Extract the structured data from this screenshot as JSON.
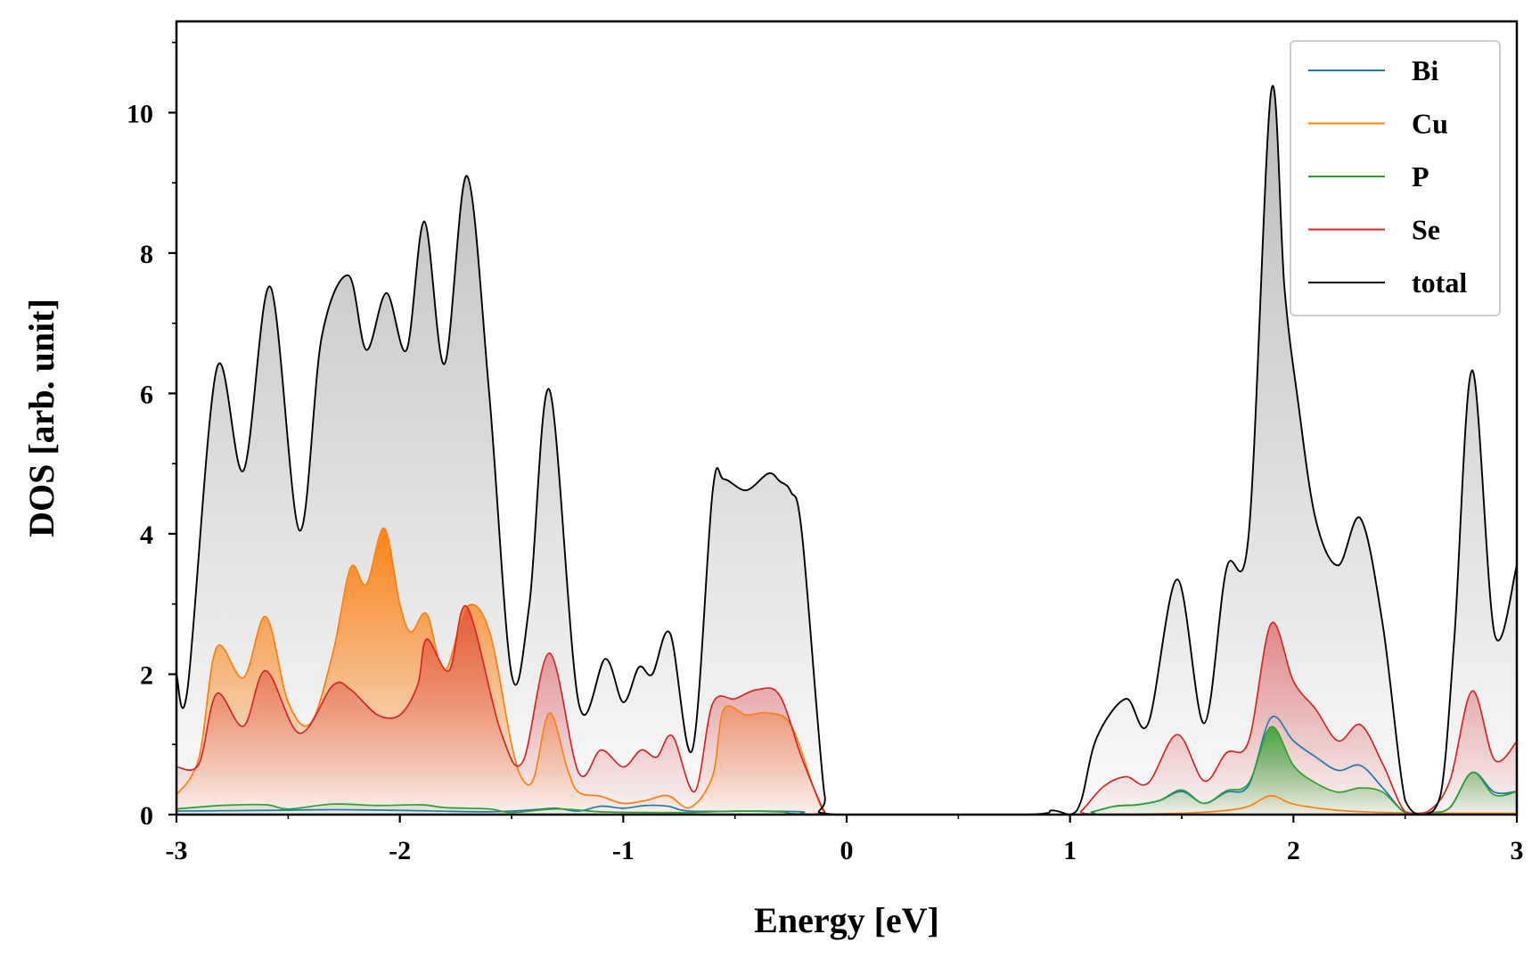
{
  "chart_data": {
    "type": "area",
    "xlabel": "Energy [eV]",
    "ylabel": "DOS [arb. unit]",
    "xlim": [
      -3,
      3
    ],
    "ylim": [
      0,
      11.3
    ],
    "xticks": [
      -3,
      -2,
      -1,
      0,
      1,
      2,
      3
    ],
    "xtick_labels": [
      "-3",
      "-2",
      "-1",
      "0",
      "1",
      "2",
      "3"
    ],
    "yticks": [
      0,
      2,
      4,
      6,
      8,
      10
    ],
    "ytick_labels": [
      "0",
      "2",
      "4",
      "6",
      "8",
      "10"
    ],
    "legend_position": "top-right",
    "grid": false,
    "series": [
      {
        "name": "Bi",
        "color": "#1f77b4",
        "filled": false,
        "points": [
          [
            -3,
            0.05
          ],
          [
            -2.6,
            0.06
          ],
          [
            -2.3,
            0.07
          ],
          [
            -2,
            0.06
          ],
          [
            -1.6,
            0.04
          ],
          [
            -1.4,
            0.07
          ],
          [
            -1.3,
            0.09
          ],
          [
            -1.2,
            0.05
          ],
          [
            -1.1,
            0.12
          ],
          [
            -1,
            0.09
          ],
          [
            -0.9,
            0.13
          ],
          [
            -0.8,
            0.12
          ],
          [
            -0.7,
            0.05
          ],
          [
            -0.4,
            0.05
          ],
          [
            -0.2,
            0.04
          ],
          [
            -0.1,
            0
          ],
          [
            1.0,
            0
          ],
          [
            1.1,
            0.04
          ],
          [
            1.2,
            0.12
          ],
          [
            1.3,
            0.14
          ],
          [
            1.4,
            0.2
          ],
          [
            1.5,
            0.33
          ],
          [
            1.6,
            0.16
          ],
          [
            1.7,
            0.32
          ],
          [
            1.8,
            0.42
          ],
          [
            1.9,
            1.38
          ],
          [
            2.0,
            1.05
          ],
          [
            2.1,
            0.82
          ],
          [
            2.2,
            0.63
          ],
          [
            2.3,
            0.7
          ],
          [
            2.4,
            0.38
          ],
          [
            2.5,
            0.03
          ],
          [
            2.6,
            0.03
          ],
          [
            2.7,
            0.1
          ],
          [
            2.8,
            0.6
          ],
          [
            2.9,
            0.32
          ],
          [
            3.0,
            0.33
          ]
        ]
      },
      {
        "name": "Cu",
        "color": "#ff7f0e",
        "filled": true,
        "points": [
          [
            -3,
            0.28
          ],
          [
            -2.9,
            0.8
          ],
          [
            -2.82,
            2.38
          ],
          [
            -2.7,
            1.95
          ],
          [
            -2.6,
            2.82
          ],
          [
            -2.5,
            1.6
          ],
          [
            -2.4,
            1.3
          ],
          [
            -2.3,
            2.3
          ],
          [
            -2.22,
            3.52
          ],
          [
            -2.15,
            3.28
          ],
          [
            -2.07,
            4.08
          ],
          [
            -2.0,
            3.0
          ],
          [
            -1.95,
            2.6
          ],
          [
            -1.88,
            2.86
          ],
          [
            -1.8,
            2.05
          ],
          [
            -1.7,
            2.96
          ],
          [
            -1.6,
            2.62
          ],
          [
            -1.5,
            1.0
          ],
          [
            -1.45,
            0.5
          ],
          [
            -1.4,
            0.52
          ],
          [
            -1.33,
            1.45
          ],
          [
            -1.25,
            0.65
          ],
          [
            -1.2,
            0.32
          ],
          [
            -1.1,
            0.26
          ],
          [
            -1.0,
            0.16
          ],
          [
            -0.9,
            0.2
          ],
          [
            -0.8,
            0.27
          ],
          [
            -0.7,
            0.1
          ],
          [
            -0.6,
            0.55
          ],
          [
            -0.55,
            1.5
          ],
          [
            -0.45,
            1.42
          ],
          [
            -0.35,
            1.45
          ],
          [
            -0.25,
            1.28
          ],
          [
            -0.15,
            0.4
          ],
          [
            -0.1,
            0.03
          ],
          [
            -0.05,
            0
          ],
          [
            1.0,
            0
          ],
          [
            1.5,
            0.02
          ],
          [
            1.7,
            0.06
          ],
          [
            1.8,
            0.12
          ],
          [
            1.9,
            0.27
          ],
          [
            2.0,
            0.15
          ],
          [
            2.2,
            0.06
          ],
          [
            2.4,
            0.03
          ],
          [
            2.6,
            0.02
          ],
          [
            3.0,
            0.02
          ]
        ]
      },
      {
        "name": "P",
        "color": "#2ca02c",
        "filled": true,
        "points": [
          [
            -3,
            0.08
          ],
          [
            -2.8,
            0.13
          ],
          [
            -2.6,
            0.14
          ],
          [
            -2.5,
            0.08
          ],
          [
            -2.3,
            0.15
          ],
          [
            -2.1,
            0.13
          ],
          [
            -1.9,
            0.14
          ],
          [
            -1.8,
            0.1
          ],
          [
            -1.6,
            0.08
          ],
          [
            -1.5,
            0.03
          ],
          [
            -1.3,
            0.08
          ],
          [
            -1.1,
            0.04
          ],
          [
            -0.9,
            0.03
          ],
          [
            -0.7,
            0.03
          ],
          [
            -0.5,
            0.05
          ],
          [
            -0.3,
            0.04
          ],
          [
            -0.1,
            0
          ],
          [
            1.0,
            0
          ],
          [
            1.1,
            0.04
          ],
          [
            1.2,
            0.12
          ],
          [
            1.3,
            0.14
          ],
          [
            1.4,
            0.2
          ],
          [
            1.5,
            0.35
          ],
          [
            1.6,
            0.16
          ],
          [
            1.7,
            0.34
          ],
          [
            1.8,
            0.45
          ],
          [
            1.9,
            1.25
          ],
          [
            2.0,
            0.7
          ],
          [
            2.1,
            0.45
          ],
          [
            2.2,
            0.32
          ],
          [
            2.3,
            0.38
          ],
          [
            2.4,
            0.32
          ],
          [
            2.5,
            0.03
          ],
          [
            2.6,
            0.03
          ],
          [
            2.7,
            0.1
          ],
          [
            2.8,
            0.6
          ],
          [
            2.9,
            0.28
          ],
          [
            3.0,
            0.33
          ]
        ]
      },
      {
        "name": "Se",
        "color": "#d62728",
        "filled": true,
        "points": [
          [
            -3,
            0.68
          ],
          [
            -2.9,
            0.72
          ],
          [
            -2.82,
            1.72
          ],
          [
            -2.7,
            1.26
          ],
          [
            -2.6,
            2.05
          ],
          [
            -2.45,
            1.16
          ],
          [
            -2.3,
            1.84
          ],
          [
            -2.22,
            1.78
          ],
          [
            -2.1,
            1.42
          ],
          [
            -2.0,
            1.42
          ],
          [
            -1.92,
            1.85
          ],
          [
            -1.88,
            2.5
          ],
          [
            -1.78,
            2.05
          ],
          [
            -1.7,
            2.96
          ],
          [
            -1.55,
            1.2
          ],
          [
            -1.45,
            0.75
          ],
          [
            -1.33,
            2.3
          ],
          [
            -1.2,
            0.6
          ],
          [
            -1.1,
            0.92
          ],
          [
            -1.0,
            0.68
          ],
          [
            -0.92,
            0.92
          ],
          [
            -0.85,
            0.82
          ],
          [
            -0.78,
            1.12
          ],
          [
            -0.68,
            0.33
          ],
          [
            -0.6,
            1.58
          ],
          [
            -0.5,
            1.65
          ],
          [
            -0.4,
            1.78
          ],
          [
            -0.3,
            1.7
          ],
          [
            -0.2,
            0.8
          ],
          [
            -0.1,
            0.05
          ],
          [
            -0.05,
            0
          ],
          [
            1.0,
            0
          ],
          [
            1.05,
            0.05
          ],
          [
            1.15,
            0.4
          ],
          [
            1.25,
            0.54
          ],
          [
            1.35,
            0.45
          ],
          [
            1.48,
            1.14
          ],
          [
            1.6,
            0.48
          ],
          [
            1.7,
            0.88
          ],
          [
            1.8,
            1.05
          ],
          [
            1.9,
            2.72
          ],
          [
            2.0,
            1.9
          ],
          [
            2.1,
            1.5
          ],
          [
            2.2,
            1.05
          ],
          [
            2.3,
            1.28
          ],
          [
            2.4,
            0.72
          ],
          [
            2.5,
            0.04
          ],
          [
            2.6,
            0.04
          ],
          [
            2.7,
            0.48
          ],
          [
            2.8,
            1.76
          ],
          [
            2.9,
            0.78
          ],
          [
            3.0,
            1.04
          ]
        ]
      },
      {
        "name": "total",
        "color": "#000000",
        "filled": true,
        "points": [
          [
            -3,
            2.0
          ],
          [
            -2.95,
            1.8
          ],
          [
            -2.82,
            6.35
          ],
          [
            -2.7,
            4.9
          ],
          [
            -2.58,
            7.52
          ],
          [
            -2.45,
            4.05
          ],
          [
            -2.35,
            6.8
          ],
          [
            -2.23,
            7.68
          ],
          [
            -2.15,
            6.62
          ],
          [
            -2.06,
            7.43
          ],
          [
            -1.97,
            6.62
          ],
          [
            -1.89,
            8.45
          ],
          [
            -1.8,
            6.42
          ],
          [
            -1.7,
            9.1
          ],
          [
            -1.6,
            6.0
          ],
          [
            -1.5,
            2.0
          ],
          [
            -1.42,
            3.0
          ],
          [
            -1.33,
            6.05
          ],
          [
            -1.2,
            1.6
          ],
          [
            -1.08,
            2.22
          ],
          [
            -1.0,
            1.6
          ],
          [
            -0.93,
            2.1
          ],
          [
            -0.87,
            2.0
          ],
          [
            -0.79,
            2.58
          ],
          [
            -0.69,
            0.93
          ],
          [
            -0.6,
            4.6
          ],
          [
            -0.55,
            4.78
          ],
          [
            -0.45,
            4.62
          ],
          [
            -0.35,
            4.86
          ],
          [
            -0.3,
            4.75
          ],
          [
            -0.25,
            4.6
          ],
          [
            -0.2,
            4.0
          ],
          [
            -0.1,
            0.3
          ],
          [
            -0.05,
            0
          ],
          [
            0.8,
            0
          ],
          [
            0.92,
            0.06
          ],
          [
            1.0,
            0
          ],
          [
            1.05,
            0.2
          ],
          [
            1.12,
            1.1
          ],
          [
            1.25,
            1.65
          ],
          [
            1.35,
            1.3
          ],
          [
            1.48,
            3.35
          ],
          [
            1.6,
            1.3
          ],
          [
            1.7,
            3.5
          ],
          [
            1.8,
            4.0
          ],
          [
            1.9,
            10.3
          ],
          [
            1.96,
            7.5
          ],
          [
            2.02,
            5.9
          ],
          [
            2.1,
            4.2
          ],
          [
            2.2,
            3.55
          ],
          [
            2.3,
            4.22
          ],
          [
            2.4,
            2.7
          ],
          [
            2.5,
            0.2
          ],
          [
            2.58,
            0
          ],
          [
            2.66,
            0.3
          ],
          [
            2.72,
            2.5
          ],
          [
            2.8,
            6.33
          ],
          [
            2.9,
            2.58
          ],
          [
            3.0,
            3.55
          ]
        ]
      }
    ]
  }
}
